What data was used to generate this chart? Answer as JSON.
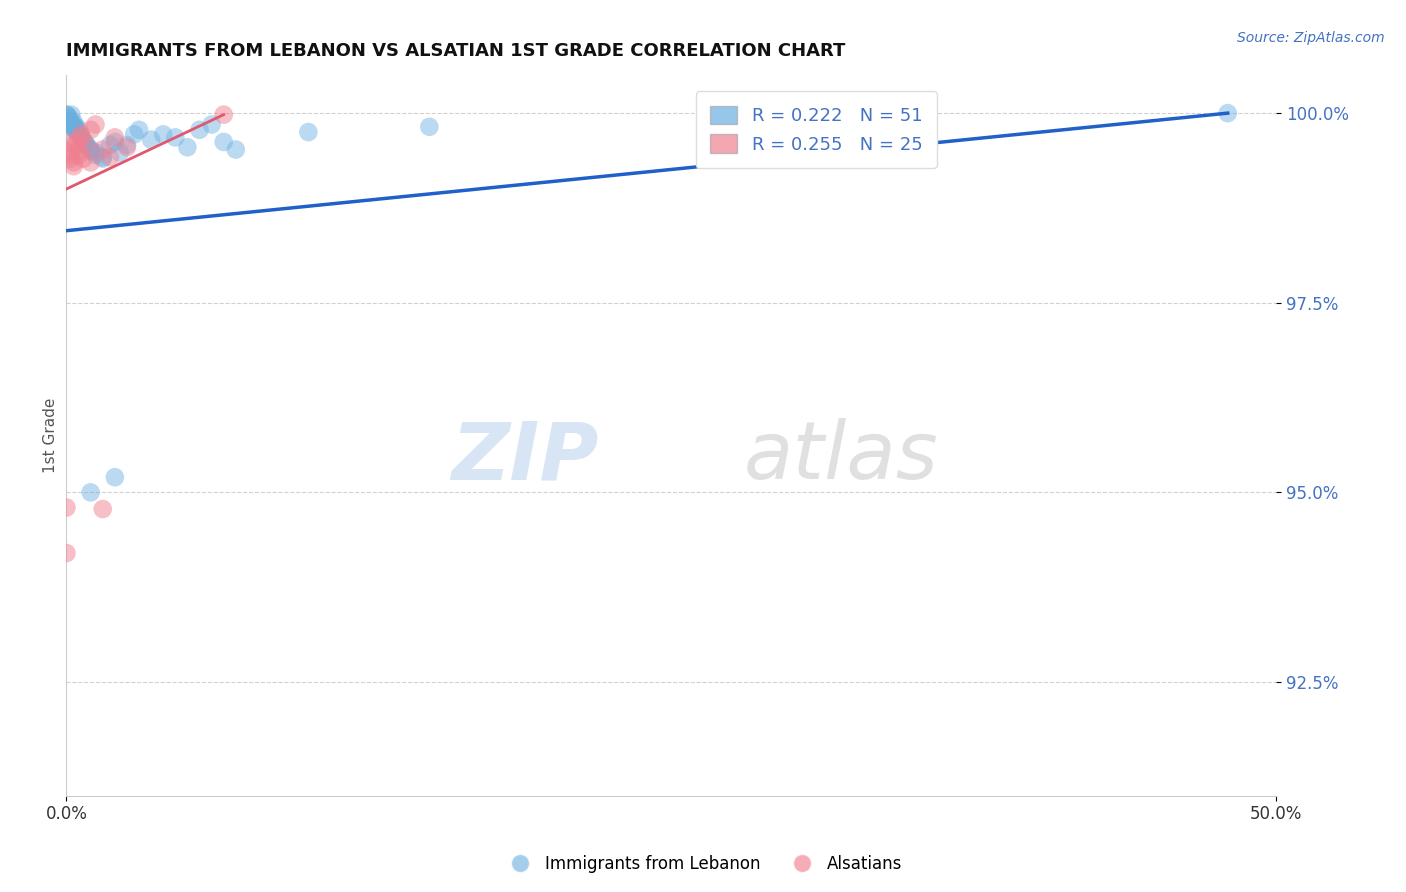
{
  "title": "IMMIGRANTS FROM LEBANON VS ALSATIAN 1ST GRADE CORRELATION CHART",
  "source_text": "Source: ZipAtlas.com",
  "ylabel": "1st Grade",
  "xlim": [
    0.0,
    0.5
  ],
  "ylim": [
    0.91,
    1.005
  ],
  "xtick_labels": [
    "0.0%",
    "50.0%"
  ],
  "ytick_labels": [
    "92.5%",
    "95.0%",
    "97.5%",
    "100.0%"
  ],
  "ytick_values": [
    0.925,
    0.95,
    0.975,
    1.0
  ],
  "xtick_values": [
    0.0,
    0.5
  ],
  "legend_R1": "R = 0.222",
  "legend_N1": "N = 51",
  "legend_R2": "R = 0.255",
  "legend_N2": "N = 25",
  "blue_color": "#6aaee0",
  "pink_color": "#f08090",
  "blue_line_color": "#2060c8",
  "pink_line_color": "#e05870",
  "background_color": "#ffffff",
  "grid_color": "#cccccc",
  "blue_scatter": [
    [
      0.0,
      0.9998
    ],
    [
      0.0,
      0.9998
    ],
    [
      0.001,
      0.9995
    ],
    [
      0.001,
      0.9993
    ],
    [
      0.001,
      0.999
    ],
    [
      0.001,
      0.9988
    ],
    [
      0.002,
      0.9985
    ],
    [
      0.002,
      0.9983
    ],
    [
      0.002,
      0.9998
    ],
    [
      0.003,
      0.998
    ],
    [
      0.003,
      0.9982
    ],
    [
      0.003,
      0.9988
    ],
    [
      0.003,
      0.9985
    ],
    [
      0.004,
      0.9982
    ],
    [
      0.004,
      0.9978
    ],
    [
      0.004,
      0.9975
    ],
    [
      0.005,
      0.9978
    ],
    [
      0.005,
      0.9972
    ],
    [
      0.006,
      0.997
    ],
    [
      0.006,
      0.9968
    ],
    [
      0.007,
      0.9965
    ],
    [
      0.007,
      0.9962
    ],
    [
      0.008,
      0.996
    ],
    [
      0.008,
      0.9958
    ],
    [
      0.009,
      0.9955
    ],
    [
      0.01,
      0.9952
    ],
    [
      0.01,
      0.995
    ],
    [
      0.012,
      0.9948
    ],
    [
      0.012,
      0.9945
    ],
    [
      0.015,
      0.9942
    ],
    [
      0.015,
      0.994
    ],
    [
      0.018,
      0.9958
    ],
    [
      0.02,
      0.9962
    ],
    [
      0.022,
      0.9948
    ],
    [
      0.025,
      0.9958
    ],
    [
      0.028,
      0.9972
    ],
    [
      0.03,
      0.9978
    ],
    [
      0.035,
      0.9965
    ],
    [
      0.04,
      0.9972
    ],
    [
      0.045,
      0.9968
    ],
    [
      0.05,
      0.9955
    ],
    [
      0.055,
      0.9978
    ],
    [
      0.06,
      0.9985
    ],
    [
      0.065,
      0.9962
    ],
    [
      0.07,
      0.9952
    ],
    [
      0.01,
      0.95
    ],
    [
      0.02,
      0.952
    ],
    [
      0.1,
      0.9975
    ],
    [
      0.15,
      0.9982
    ],
    [
      0.3,
      0.9988
    ],
    [
      0.48,
      1.0
    ]
  ],
  "pink_scatter": [
    [
      0.0,
      0.942
    ],
    [
      0.0,
      0.948
    ],
    [
      0.001,
      0.995
    ],
    [
      0.001,
      0.996
    ],
    [
      0.002,
      0.994
    ],
    [
      0.002,
      0.9945
    ],
    [
      0.003,
      0.993
    ],
    [
      0.003,
      0.9935
    ],
    [
      0.004,
      0.9958
    ],
    [
      0.004,
      0.9962
    ],
    [
      0.005,
      0.9945
    ],
    [
      0.005,
      0.995
    ],
    [
      0.006,
      0.9968
    ],
    [
      0.006,
      0.9972
    ],
    [
      0.007,
      0.994
    ],
    [
      0.008,
      0.9958
    ],
    [
      0.01,
      0.9935
    ],
    [
      0.01,
      0.9978
    ],
    [
      0.012,
      0.9985
    ],
    [
      0.015,
      0.9952
    ],
    [
      0.015,
      0.9478
    ],
    [
      0.018,
      0.9942
    ],
    [
      0.02,
      0.9968
    ],
    [
      0.025,
      0.9955
    ],
    [
      0.065,
      0.9998
    ]
  ],
  "blue_line": [
    [
      0.0,
      0.9845
    ],
    [
      0.48,
      1.0
    ]
  ],
  "pink_line": [
    [
      0.0,
      0.99
    ],
    [
      0.065,
      0.9998
    ]
  ]
}
